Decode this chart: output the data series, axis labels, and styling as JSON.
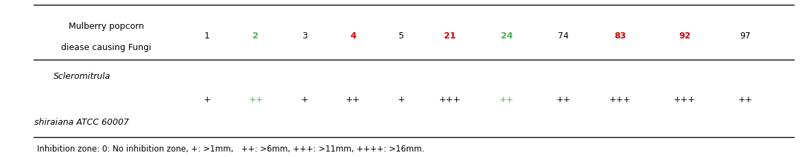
{
  "header_left1": "Mulberry popcorn",
  "header_left2": "diease causing Fungi",
  "columns": [
    "1",
    "2",
    "3",
    "4",
    "5",
    "21",
    "24",
    "74",
    "83",
    "92",
    "97"
  ],
  "col_colors": [
    "black",
    "#4caf50",
    "black",
    "#cc0000",
    "black",
    "#cc0000",
    "#4caf50",
    "black",
    "#cc0000",
    "#cc0000",
    "black"
  ],
  "row_label1": "Scleromitrula",
  "row_label2": "shiraiana ATCC 60007",
  "row_values": [
    "+",
    "++",
    "+",
    "++",
    "+",
    "+++",
    "++",
    "++",
    "+++",
    "+++",
    "++"
  ],
  "row_val_colors": [
    "black",
    "#4caf50",
    "black",
    "black",
    "black",
    "black",
    "#4caf50",
    "black",
    "black",
    "black",
    "black"
  ],
  "footnote": "Inhibition zone: 0: No inhibition zone, +: >1mm,   ++: >6mm, +++: >11mm, ++++: >16mm.",
  "bg_color": "#ffffff"
}
